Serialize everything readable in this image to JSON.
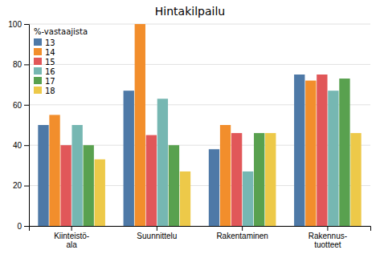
{
  "chart_data": {
    "type": "bar",
    "title": "Hintakilpailu",
    "legend_title": "%-vastaajista",
    "categories": [
      "Kiinteistö-\nala",
      "Suunnittelu",
      "Rakentaminen",
      "Rakennus-\ntuotteet"
    ],
    "series": [
      {
        "name": "13",
        "values": [
          50,
          67,
          38,
          75
        ]
      },
      {
        "name": "14",
        "values": [
          55,
          100,
          50,
          72
        ]
      },
      {
        "name": "15",
        "values": [
          40,
          45,
          46,
          75
        ]
      },
      {
        "name": "16",
        "values": [
          50,
          63,
          27,
          67
        ]
      },
      {
        "name": "17",
        "values": [
          40,
          40,
          46,
          73
        ]
      },
      {
        "name": "18",
        "values": [
          33,
          27,
          46,
          46
        ]
      }
    ],
    "ylim": [
      0,
      100
    ],
    "yticks": [
      0,
      20,
      40,
      60,
      80,
      100
    ],
    "grid": true,
    "legend": "upper left"
  }
}
